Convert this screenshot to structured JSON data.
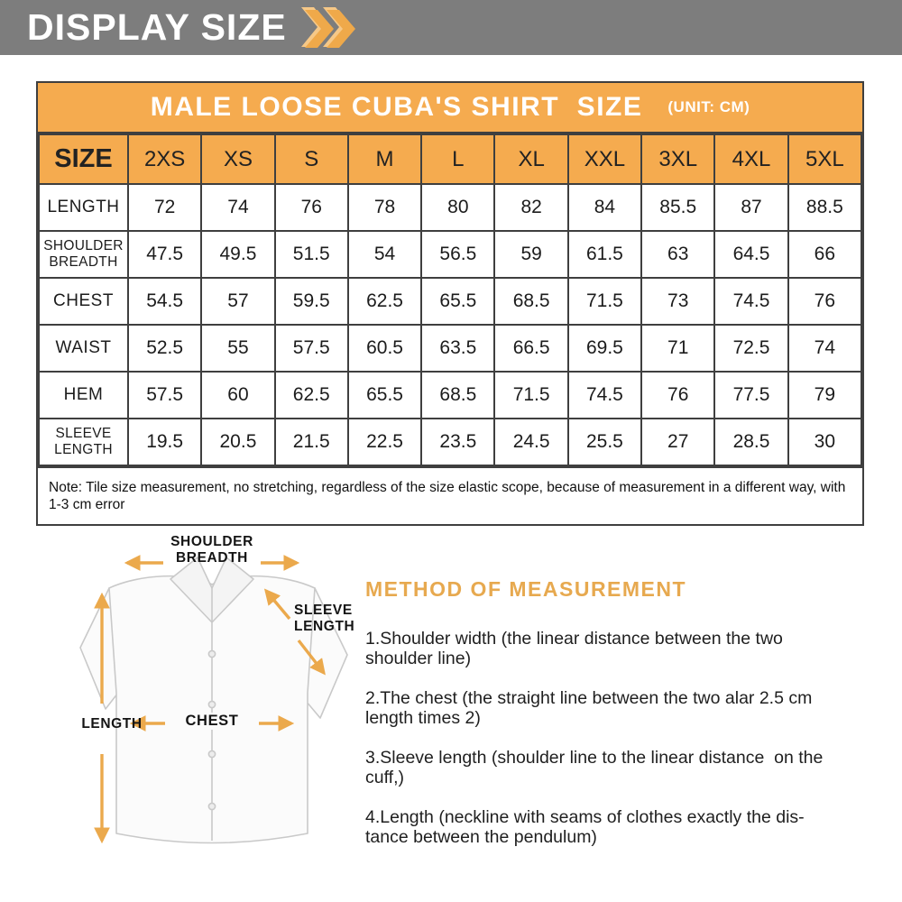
{
  "banner": {
    "title": "DISPLAY SIZE"
  },
  "size_card": {
    "title": "MALE LOOSE CUBA'S SHIRT  SIZE",
    "unit_label": "(UNIT: CM)",
    "columns": [
      "SIZE",
      "2XS",
      "XS",
      "S",
      "M",
      "L",
      "XL",
      "XXL",
      "3XL",
      "4XL",
      "5XL"
    ],
    "rows": [
      {
        "label": "LENGTH",
        "values": [
          "72",
          "74",
          "76",
          "78",
          "80",
          "82",
          "84",
          "85.5",
          "87",
          "88.5"
        ]
      },
      {
        "label": "SHOULDER BREADTH",
        "values": [
          "47.5",
          "49.5",
          "51.5",
          "54",
          "56.5",
          "59",
          "61.5",
          "63",
          "64.5",
          "66"
        ]
      },
      {
        "label": "CHEST",
        "values": [
          "54.5",
          "57",
          "59.5",
          "62.5",
          "65.5",
          "68.5",
          "71.5",
          "73",
          "74.5",
          "76"
        ]
      },
      {
        "label": "WAIST",
        "values": [
          "52.5",
          "55",
          "57.5",
          "60.5",
          "63.5",
          "66.5",
          "69.5",
          "71",
          "72.5",
          "74"
        ]
      },
      {
        "label": "HEM",
        "values": [
          "57.5",
          "60",
          "62.5",
          "65.5",
          "68.5",
          "71.5",
          "74.5",
          "76",
          "77.5",
          "79"
        ]
      },
      {
        "label": "SLEEVE LENGTH",
        "values": [
          "19.5",
          "20.5",
          "21.5",
          "22.5",
          "23.5",
          "24.5",
          "25.5",
          "27",
          "28.5",
          "30"
        ]
      }
    ],
    "note": "Note: Tile size measurement, no stretching, regardless of the size elastic scope, because of measurement in a different way, with 1-3 cm error"
  },
  "diagram": {
    "shoulder_label": "SHOULDER\nBREADTH",
    "sleeve_label": "SLEEVE\nLENGTH",
    "length_label": "LENGTH",
    "chest_label": "CHEST"
  },
  "method": {
    "title": "METHOD OF MEASUREMENT",
    "items": [
      "1.Shoulder width (the linear distance between the two\nshoulder line)",
      "2.The chest (the straight line between the two alar 2.5 cm\nlength times 2)",
      "3.Sleeve length (shoulder line to the linear distance  on the\ncuff,)",
      "4.Length (neckline with seams of clothes exactly the dis-\ntance between the pendulum)"
    ]
  },
  "colors": {
    "banner_gray": "#7d7d7d",
    "accent_orange": "#f5ab4f",
    "table_border": "#3f3f3f",
    "method_title_orange": "#e7a94f",
    "arrow_orange": "#eba94c"
  }
}
